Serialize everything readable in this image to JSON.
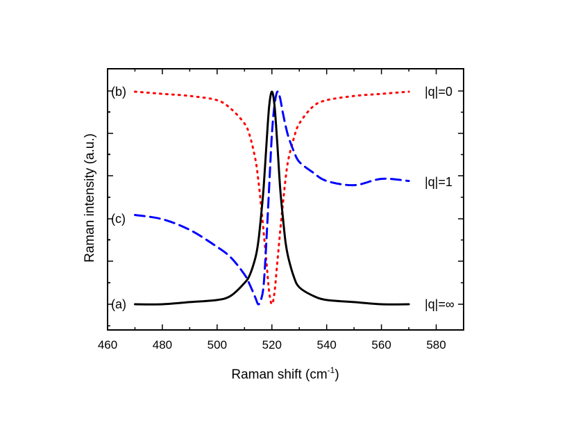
{
  "chart_data": {
    "type": "line",
    "xlabel": "Raman shift (cm",
    "xlabel_superscript": "-1",
    "xlabel_suffix": ")",
    "ylabel": "Raman intensity (a.u.)",
    "xlim": [
      460,
      590
    ],
    "xticks": [
      "460",
      "480",
      "500",
      "520",
      "540",
      "560",
      "580"
    ],
    "y_tick_labels_shown": false,
    "grid": false,
    "legend": "none",
    "x": [
      470,
      480,
      490,
      500,
      505,
      510,
      512,
      514,
      515,
      516,
      517,
      518,
      519,
      520,
      521,
      522,
      523,
      524,
      525,
      526,
      528,
      530,
      535,
      540,
      550,
      560,
      570
    ],
    "series": [
      {
        "label": "(a)",
        "tag": "|q|=∞",
        "color": "#000000",
        "style": "solid",
        "values": [
          0.0,
          0.0,
          0.01,
          0.02,
          0.04,
          0.1,
          0.14,
          0.22,
          0.29,
          0.41,
          0.55,
          0.75,
          0.93,
          1.0,
          0.93,
          0.75,
          0.55,
          0.41,
          0.29,
          0.22,
          0.13,
          0.08,
          0.04,
          0.02,
          0.01,
          0.0,
          0.0
        ]
      },
      {
        "label": "(b)",
        "tag": "|q|=0",
        "color": "#ff0000",
        "style": "dotted",
        "values": [
          1.0,
          0.99,
          0.98,
          0.96,
          0.92,
          0.85,
          0.79,
          0.68,
          0.59,
          0.47,
          0.34,
          0.2,
          0.06,
          0.0,
          0.06,
          0.2,
          0.34,
          0.47,
          0.59,
          0.68,
          0.78,
          0.85,
          0.93,
          0.96,
          0.98,
          0.99,
          1.0
        ]
      },
      {
        "label": "(c)",
        "tag": "|q|=1",
        "color": "#0000ff",
        "style": "dashed",
        "values": [
          0.42,
          0.4,
          0.35,
          0.27,
          0.22,
          0.14,
          0.09,
          0.03,
          0.0,
          0.02,
          0.09,
          0.3,
          0.55,
          0.8,
          0.94,
          1.0,
          0.97,
          0.9,
          0.84,
          0.79,
          0.72,
          0.67,
          0.62,
          0.58,
          0.56,
          0.59,
          0.58
        ]
      }
    ]
  }
}
